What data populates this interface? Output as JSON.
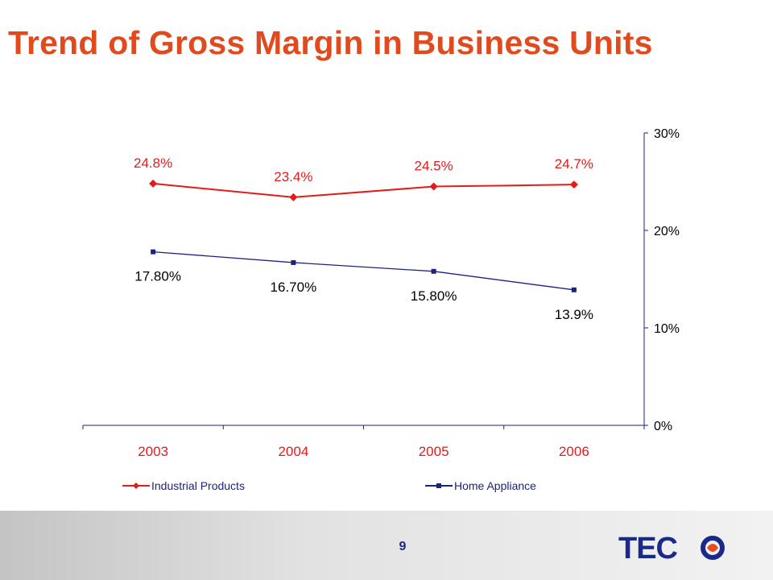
{
  "slide": {
    "title": "Trend of Gross Margin in Business Units",
    "page_number": "9",
    "logo_text": "TECO"
  },
  "colors": {
    "title": "#e04a1f",
    "industrial": "#e31b1b",
    "home": "#1a237e",
    "axis": "#1a237e",
    "logo": "#1a2a8a",
    "logo_accent": "#e84d1c"
  },
  "chart_data": {
    "type": "line",
    "categories": [
      "2003",
      "2004",
      "2005",
      "2006"
    ],
    "series": [
      {
        "name": "Industrial Products",
        "values": [
          24.8,
          23.4,
          24.5,
          24.7
        ],
        "labels": [
          "24.8%",
          "23.4%",
          "24.5%",
          "24.7%"
        ],
        "marker": "diamond",
        "color": "#e31b1b"
      },
      {
        "name": "Home Appliance",
        "values": [
          17.8,
          16.7,
          15.8,
          13.9
        ],
        "labels": [
          "17.80%",
          "16.70%",
          "15.80%",
          "13.9%"
        ],
        "marker": "square",
        "color": "#1a237e"
      }
    ],
    "y_axis": {
      "position": "right",
      "ylim": [
        0,
        30
      ],
      "ticks": [
        0,
        10,
        20,
        30
      ],
      "tick_labels": [
        "0%",
        "10%",
        "20%",
        "30%"
      ]
    },
    "grid": false,
    "legend": "bottom"
  }
}
